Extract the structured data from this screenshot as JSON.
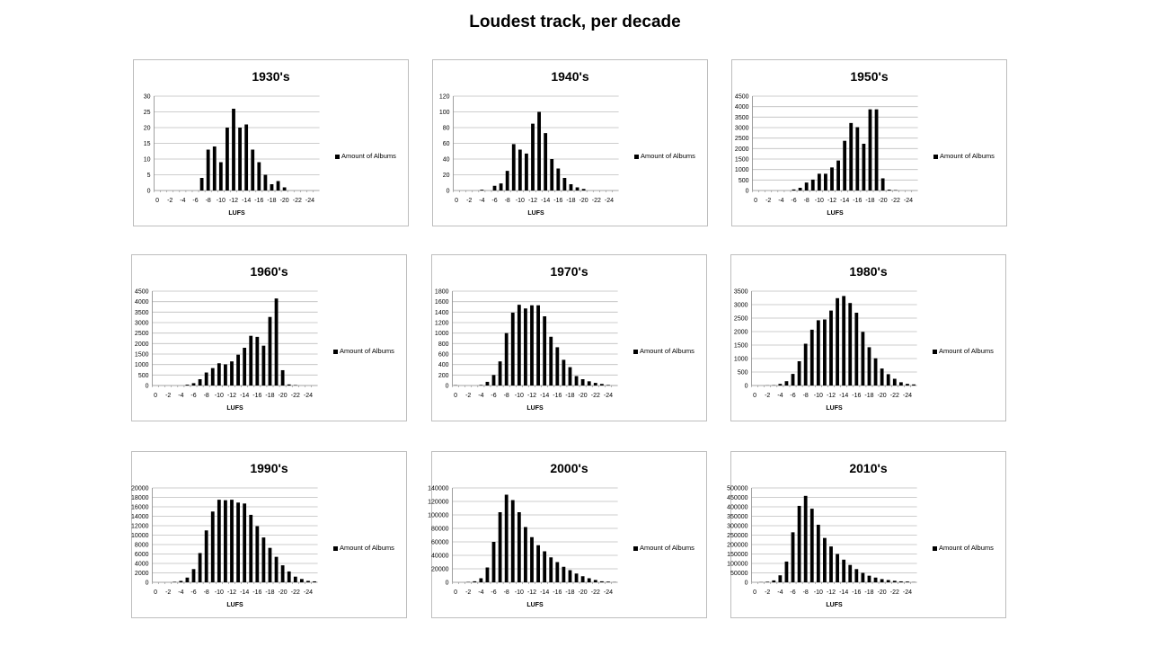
{
  "title": "Loudest track, per decade",
  "chart_data": [
    {
      "type": "bar",
      "title": "1930's",
      "xlabel": "LUFS",
      "legend": "Amount of Albums",
      "legend_position": "right",
      "ylim": [
        0,
        30
      ],
      "yticks": [
        0,
        5,
        10,
        15,
        20,
        25,
        30
      ],
      "categories": [
        0,
        -1,
        -2,
        -3,
        -4,
        -5,
        -6,
        -7,
        -8,
        -9,
        -10,
        -11,
        -12,
        -13,
        -14,
        -15,
        -16,
        -17,
        -18,
        -19,
        -20,
        -21,
        -22,
        -23,
        -24,
        -25
      ],
      "values": [
        0,
        0,
        0,
        0,
        0,
        0,
        0,
        4,
        13,
        14,
        9,
        20,
        26,
        20,
        21,
        13,
        9,
        5,
        2,
        3,
        1,
        0,
        0,
        0,
        0,
        0
      ]
    },
    {
      "type": "bar",
      "title": "1940's",
      "xlabel": "LUFS",
      "legend": "Amount of Albums",
      "legend_position": "right",
      "ylim": [
        0,
        120
      ],
      "yticks": [
        0,
        20,
        40,
        60,
        80,
        100,
        120
      ],
      "categories": [
        0,
        -1,
        -2,
        -3,
        -4,
        -5,
        -6,
        -7,
        -8,
        -9,
        -10,
        -11,
        -12,
        -13,
        -14,
        -15,
        -16,
        -17,
        -18,
        -19,
        -20,
        -21,
        -22,
        -23,
        -24,
        -25
      ],
      "values": [
        0,
        0,
        0,
        0,
        1,
        0,
        6,
        9,
        25,
        59,
        52,
        47,
        85,
        100,
        73,
        40,
        28,
        16,
        8,
        4,
        2,
        0,
        0,
        0,
        0,
        0
      ]
    },
    {
      "type": "bar",
      "title": "1950's",
      "xlabel": "LUFS",
      "legend": "Amount of Albums",
      "legend_position": "right",
      "ylim": [
        0,
        4500
      ],
      "yticks": [
        0,
        500,
        1000,
        1500,
        2000,
        2500,
        3000,
        3500,
        4000,
        4500
      ],
      "categories": [
        0,
        -1,
        -2,
        -3,
        -4,
        -5,
        -6,
        -7,
        -8,
        -9,
        -10,
        -11,
        -12,
        -13,
        -14,
        -15,
        -16,
        -17,
        -18,
        -19,
        -20,
        -21,
        -22,
        -23,
        -24,
        -25
      ],
      "values": [
        0,
        0,
        0,
        0,
        0,
        0,
        50,
        130,
        380,
        520,
        800,
        800,
        1100,
        1430,
        2370,
        3220,
        3020,
        2230,
        3870,
        3870,
        580,
        40,
        20,
        0,
        0,
        0
      ]
    },
    {
      "type": "bar",
      "title": "1960's",
      "xlabel": "LUFS",
      "legend": "Amount of Albums",
      "legend_position": "right",
      "ylim": [
        0,
        4500
      ],
      "yticks": [
        0,
        500,
        1000,
        1500,
        2000,
        2500,
        3000,
        3500,
        4000,
        4500
      ],
      "categories": [
        0,
        -1,
        -2,
        -3,
        -4,
        -5,
        -6,
        -7,
        -8,
        -9,
        -10,
        -11,
        -12,
        -13,
        -14,
        -15,
        -16,
        -17,
        -18,
        -19,
        -20,
        -21,
        -22,
        -23,
        -24,
        -25
      ],
      "values": [
        0,
        0,
        0,
        0,
        0,
        40,
        110,
        300,
        620,
        830,
        1060,
        1010,
        1150,
        1470,
        1800,
        2370,
        2320,
        1900,
        3270,
        4150,
        730,
        50,
        20,
        0,
        0,
        0
      ]
    },
    {
      "type": "bar",
      "title": "1970's",
      "xlabel": "LUFS",
      "legend": "Amount of Albums",
      "legend_position": "right",
      "ylim": [
        0,
        1800
      ],
      "yticks": [
        0,
        200,
        400,
        600,
        800,
        1000,
        1200,
        1400,
        1600,
        1800
      ],
      "categories": [
        0,
        -1,
        -2,
        -3,
        -4,
        -5,
        -6,
        -7,
        -8,
        -9,
        -10,
        -11,
        -12,
        -13,
        -14,
        -15,
        -16,
        -17,
        -18,
        -19,
        -20,
        -21,
        -22,
        -23,
        -24,
        -25
      ],
      "values": [
        5,
        0,
        0,
        0,
        10,
        70,
        200,
        460,
        1000,
        1390,
        1540,
        1470,
        1530,
        1530,
        1320,
        930,
        730,
        490,
        350,
        180,
        120,
        80,
        50,
        30,
        10,
        0
      ]
    },
    {
      "type": "bar",
      "title": "1980's",
      "xlabel": "LUFS",
      "legend": "Amount of Albums",
      "legend_position": "right",
      "ylim": [
        0,
        3500
      ],
      "yticks": [
        0,
        500,
        1000,
        1500,
        2000,
        2500,
        3000,
        3500
      ],
      "categories": [
        0,
        -1,
        -2,
        -3,
        -4,
        -5,
        -6,
        -7,
        -8,
        -9,
        -10,
        -11,
        -12,
        -13,
        -14,
        -15,
        -16,
        -17,
        -18,
        -19,
        -20,
        -21,
        -22,
        -23,
        -24,
        -25
      ],
      "values": [
        0,
        0,
        5,
        10,
        60,
        160,
        430,
        900,
        1550,
        2070,
        2420,
        2450,
        2780,
        3240,
        3320,
        3060,
        2700,
        1990,
        1420,
        1010,
        630,
        420,
        250,
        120,
        60,
        40
      ]
    },
    {
      "type": "bar",
      "title": "1990's",
      "xlabel": "LUFS",
      "legend": "Amount of Albums",
      "legend_position": "right",
      "ylim": [
        0,
        20000
      ],
      "yticks": [
        0,
        2000,
        4000,
        6000,
        8000,
        10000,
        12000,
        14000,
        16000,
        18000,
        20000
      ],
      "categories": [
        0,
        -1,
        -2,
        -3,
        -4,
        -5,
        -6,
        -7,
        -8,
        -9,
        -10,
        -11,
        -12,
        -13,
        -14,
        -15,
        -16,
        -17,
        -18,
        -19,
        -20,
        -21,
        -22,
        -23,
        -24,
        -25
      ],
      "values": [
        0,
        0,
        0,
        100,
        300,
        1000,
        2800,
        6200,
        11000,
        15000,
        17500,
        17400,
        17500,
        16900,
        16700,
        14300,
        11900,
        9500,
        7300,
        5400,
        3600,
        2300,
        1200,
        700,
        300,
        200
      ]
    },
    {
      "type": "bar",
      "title": "2000's",
      "xlabel": "LUFS",
      "legend": "Amount of Albums",
      "legend_position": "right",
      "ylim": [
        0,
        140000
      ],
      "yticks": [
        0,
        20000,
        40000,
        60000,
        80000,
        100000,
        120000,
        140000
      ],
      "categories": [
        0,
        -1,
        -2,
        -3,
        -4,
        -5,
        -6,
        -7,
        -8,
        -9,
        -10,
        -11,
        -12,
        -13,
        -14,
        -15,
        -16,
        -17,
        -18,
        -19,
        -20,
        -21,
        -22,
        -23,
        -24,
        -25
      ],
      "values": [
        0,
        0,
        500,
        1500,
        6000,
        22000,
        60000,
        104000,
        130000,
        122000,
        104000,
        82000,
        67000,
        55000,
        46000,
        37000,
        30000,
        23000,
        18000,
        13000,
        9000,
        6000,
        3500,
        1500,
        1000,
        300
      ]
    },
    {
      "type": "bar",
      "title": "2010's",
      "xlabel": "LUFS",
      "legend": "Amount of Albums",
      "legend_position": "right",
      "ylim": [
        0,
        500000
      ],
      "yticks": [
        0,
        50000,
        100000,
        150000,
        200000,
        250000,
        300000,
        350000,
        400000,
        450000,
        500000
      ],
      "categories": [
        0,
        -1,
        -2,
        -3,
        -4,
        -5,
        -6,
        -7,
        -8,
        -9,
        -10,
        -11,
        -12,
        -13,
        -14,
        -15,
        -16,
        -17,
        -18,
        -19,
        -20,
        -21,
        -22,
        -23,
        -24,
        -25
      ],
      "values": [
        0,
        1000,
        3000,
        10000,
        37000,
        110000,
        265000,
        405000,
        458000,
        390000,
        305000,
        235000,
        190000,
        150000,
        120000,
        92000,
        70000,
        50000,
        35000,
        25000,
        17000,
        12000,
        8000,
        5000,
        4000,
        1000
      ]
    }
  ]
}
